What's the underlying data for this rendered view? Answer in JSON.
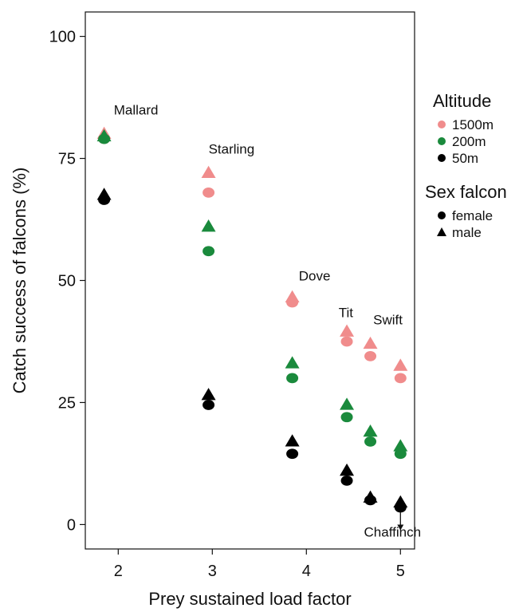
{
  "chart_data": {
    "type": "scatter",
    "xlabel": "Prey sustained load factor",
    "ylabel": "Catch success of falcons (%)",
    "xlim": [
      1.65,
      5.15
    ],
    "ylim": [
      -5,
      105
    ],
    "xticks": [
      2,
      3,
      4,
      5
    ],
    "yticks": [
      0,
      25,
      50,
      75,
      100
    ],
    "grid": false,
    "legend_placement": "right",
    "altitude_legend": {
      "title": "Altitude",
      "items": [
        {
          "label": "1500m",
          "color": "#f08c8c"
        },
        {
          "label": "200m",
          "color": "#1a8a3c"
        },
        {
          "label": "50m",
          "color": "#000000"
        }
      ]
    },
    "sex_legend": {
      "title": "Sex falcon",
      "items": [
        {
          "label": "female",
          "marker": "circle"
        },
        {
          "label": "male",
          "marker": "triangle"
        }
      ]
    },
    "annotations": [
      {
        "text": "Mallard",
        "x": 1.85,
        "y": 84
      },
      {
        "text": "Starling",
        "x": 2.95,
        "y": 76
      },
      {
        "text": "Dove",
        "x": 3.85,
        "y": 50
      },
      {
        "text": "Tit",
        "x": 4.42,
        "y": 42.5
      },
      {
        "text": "Swift",
        "x": 4.68,
        "y": 41
      },
      {
        "text": "Chaffinch",
        "x": 5.0,
        "y": -2.5
      }
    ],
    "series": [
      {
        "altitude": "1500m",
        "sex": "female",
        "color": "#f08c8c",
        "marker": "circle",
        "points": [
          [
            1.85,
            79
          ],
          [
            2.96,
            68
          ],
          [
            3.85,
            45.5
          ],
          [
            4.43,
            37.5
          ],
          [
            4.68,
            34.5
          ],
          [
            5.0,
            30
          ]
        ]
      },
      {
        "altitude": "1500m",
        "sex": "male",
        "color": "#f08c8c",
        "marker": "triangle",
        "points": [
          [
            1.85,
            80
          ],
          [
            2.96,
            72
          ],
          [
            3.85,
            46.5
          ],
          [
            4.43,
            39.5
          ],
          [
            4.68,
            37
          ],
          [
            5.0,
            32.5
          ]
        ]
      },
      {
        "altitude": "200m",
        "sex": "female",
        "color": "#1a8a3c",
        "marker": "circle",
        "points": [
          [
            1.85,
            79
          ],
          [
            2.96,
            56
          ],
          [
            3.85,
            30
          ],
          [
            4.43,
            22
          ],
          [
            4.68,
            17
          ],
          [
            5.0,
            14.5
          ]
        ]
      },
      {
        "altitude": "200m",
        "sex": "male",
        "color": "#1a8a3c",
        "marker": "triangle",
        "points": [
          [
            1.85,
            79.5
          ],
          [
            2.96,
            61
          ],
          [
            3.85,
            33
          ],
          [
            4.43,
            24.5
          ],
          [
            4.68,
            19
          ],
          [
            5.0,
            16
          ]
        ]
      },
      {
        "altitude": "50m",
        "sex": "female",
        "color": "#000000",
        "marker": "circle",
        "points": [
          [
            1.85,
            66.5
          ],
          [
            2.96,
            24.5
          ],
          [
            3.85,
            14.5
          ],
          [
            4.43,
            9
          ],
          [
            4.68,
            5
          ],
          [
            5.0,
            3.5
          ]
        ]
      },
      {
        "altitude": "50m",
        "sex": "male",
        "color": "#000000",
        "marker": "triangle",
        "points": [
          [
            1.85,
            67.5
          ],
          [
            2.96,
            26.5
          ],
          [
            3.85,
            17
          ],
          [
            4.43,
            11
          ],
          [
            4.68,
            5.5
          ],
          [
            5.0,
            4.5
          ]
        ]
      }
    ],
    "arrow": {
      "label_ref": "Chaffinch",
      "x": 5.0,
      "from_y": 2.5,
      "to_y": -1
    }
  }
}
